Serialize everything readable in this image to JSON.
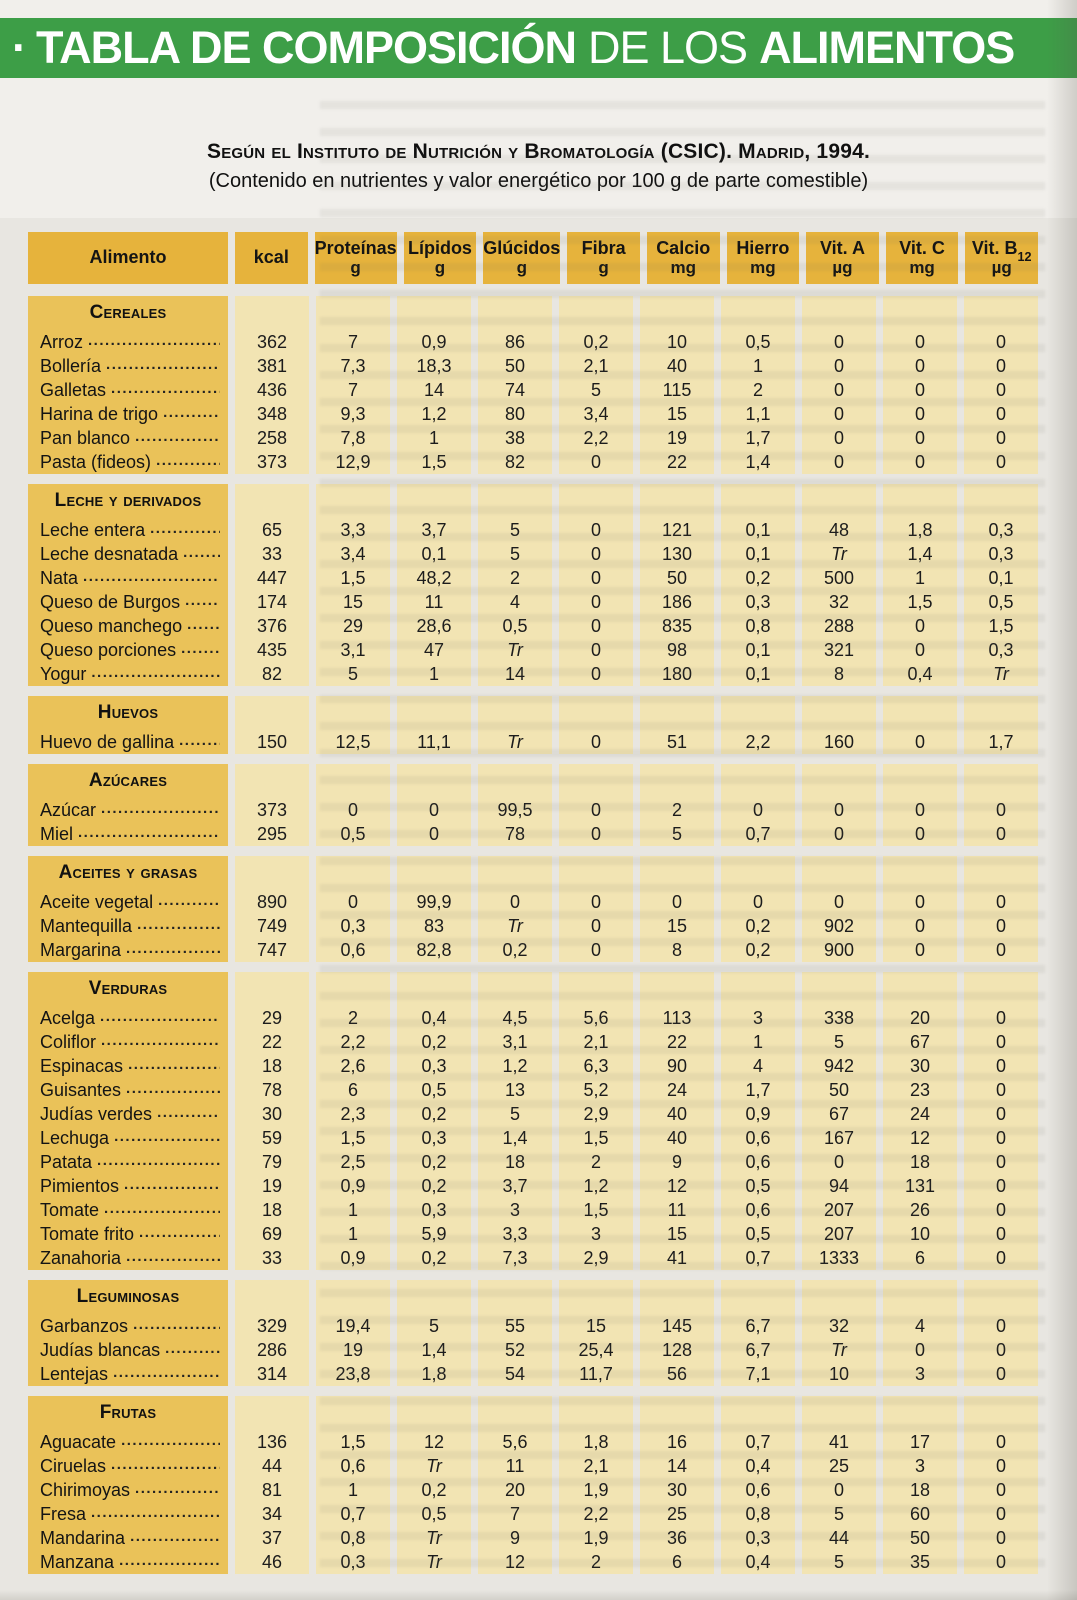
{
  "title": {
    "bullet": "·",
    "part1": "TABLA DE COMPOSICIÓN",
    "part2": "DE LOS",
    "part3": "ALIMENTOS"
  },
  "subtitle1": "Según el Instituto de Nutrición y Bromatología (CSIC). Madrid, 1994.",
  "subtitle2": "(Contenido en nutrientes y valor energético por 100 g de parte comestible)",
  "colors": {
    "header_green": "#3d9e47",
    "header_gold": "#e6b33c",
    "food_column_gold": "#eac259",
    "value_strip_cream": "#f2e4b3"
  },
  "columns": [
    {
      "label": "Alimento",
      "sub": "",
      "unit": ""
    },
    {
      "label": "kcal",
      "sub": "",
      "unit": ""
    },
    {
      "label": "Proteínas",
      "sub": "",
      "unit": "g"
    },
    {
      "label": "Lípidos",
      "sub": "",
      "unit": "g"
    },
    {
      "label": "Glúcidos",
      "sub": "",
      "unit": "g"
    },
    {
      "label": "Fibra",
      "sub": "",
      "unit": "g"
    },
    {
      "label": "Calcio",
      "sub": "",
      "unit": "mg"
    },
    {
      "label": "Hierro",
      "sub": "",
      "unit": "mg"
    },
    {
      "label": "Vit. A",
      "sub": "",
      "unit": "µg"
    },
    {
      "label": "Vit. C",
      "sub": "",
      "unit": "mg"
    },
    {
      "label": "Vit. B",
      "sub": "12",
      "unit": "µg"
    }
  ],
  "sections": [
    {
      "name": "Cereales",
      "rows": [
        {
          "food": "Arroz",
          "values": [
            "362",
            "7",
            "0,9",
            "86",
            "0,2",
            "10",
            "0,5",
            "0",
            "0",
            "0"
          ]
        },
        {
          "food": "Bollería",
          "values": [
            "381",
            "7,3",
            "18,3",
            "50",
            "2,1",
            "40",
            "1",
            "0",
            "0",
            "0"
          ]
        },
        {
          "food": "Galletas",
          "values": [
            "436",
            "7",
            "14",
            "74",
            "5",
            "115",
            "2",
            "0",
            "0",
            "0"
          ]
        },
        {
          "food": "Harina de trigo",
          "values": [
            "348",
            "9,3",
            "1,2",
            "80",
            "3,4",
            "15",
            "1,1",
            "0",
            "0",
            "0"
          ]
        },
        {
          "food": "Pan blanco",
          "values": [
            "258",
            "7,8",
            "1",
            "38",
            "2,2",
            "19",
            "1,7",
            "0",
            "0",
            "0"
          ]
        },
        {
          "food": "Pasta (fideos)",
          "values": [
            "373",
            "12,9",
            "1,5",
            "82",
            "0",
            "22",
            "1,4",
            "0",
            "0",
            "0"
          ]
        }
      ]
    },
    {
      "name": "Leche y derivados",
      "rows": [
        {
          "food": "Leche entera",
          "values": [
            "65",
            "3,3",
            "3,7",
            "5",
            "0",
            "121",
            "0,1",
            "48",
            "1,8",
            "0,3"
          ]
        },
        {
          "food": "Leche desnatada",
          "values": [
            "33",
            "3,4",
            "0,1",
            "5",
            "0",
            "130",
            "0,1",
            "Tr",
            "1,4",
            "0,3"
          ]
        },
        {
          "food": "Nata",
          "values": [
            "447",
            "1,5",
            "48,2",
            "2",
            "0",
            "50",
            "0,2",
            "500",
            "1",
            "0,1"
          ]
        },
        {
          "food": "Queso de Burgos",
          "values": [
            "174",
            "15",
            "11",
            "4",
            "0",
            "186",
            "0,3",
            "32",
            "1,5",
            "0,5"
          ]
        },
        {
          "food": "Queso manchego",
          "values": [
            "376",
            "29",
            "28,6",
            "0,5",
            "0",
            "835",
            "0,8",
            "288",
            "0",
            "1,5"
          ]
        },
        {
          "food": "Queso porciones",
          "values": [
            "435",
            "3,1",
            "47",
            "Tr",
            "0",
            "98",
            "0,1",
            "321",
            "0",
            "0,3"
          ]
        },
        {
          "food": "Yogur",
          "values": [
            "82",
            "5",
            "1",
            "14",
            "0",
            "180",
            "0,1",
            "8",
            "0,4",
            "Tr"
          ]
        }
      ]
    },
    {
      "name": "Huevos",
      "rows": [
        {
          "food": "Huevo de gallina",
          "values": [
            "150",
            "12,5",
            "11,1",
            "Tr",
            "0",
            "51",
            "2,2",
            "160",
            "0",
            "1,7"
          ]
        }
      ]
    },
    {
      "name": "Azúcares",
      "rows": [
        {
          "food": "Azúcar",
          "values": [
            "373",
            "0",
            "0",
            "99,5",
            "0",
            "2",
            "0",
            "0",
            "0",
            "0"
          ]
        },
        {
          "food": "Miel",
          "values": [
            "295",
            "0,5",
            "0",
            "78",
            "0",
            "5",
            "0,7",
            "0",
            "0",
            "0"
          ]
        }
      ]
    },
    {
      "name": "Aceites y grasas",
      "rows": [
        {
          "food": "Aceite vegetal",
          "values": [
            "890",
            "0",
            "99,9",
            "0",
            "0",
            "0",
            "0",
            "0",
            "0",
            "0"
          ]
        },
        {
          "food": "Mantequilla",
          "values": [
            "749",
            "0,3",
            "83",
            "Tr",
            "0",
            "15",
            "0,2",
            "902",
            "0",
            "0"
          ]
        },
        {
          "food": "Margarina",
          "values": [
            "747",
            "0,6",
            "82,8",
            "0,2",
            "0",
            "8",
            "0,2",
            "900",
            "0",
            "0"
          ]
        }
      ]
    },
    {
      "name": "Verduras",
      "rows": [
        {
          "food": "Acelga",
          "values": [
            "29",
            "2",
            "0,4",
            "4,5",
            "5,6",
            "113",
            "3",
            "338",
            "20",
            "0"
          ]
        },
        {
          "food": "Coliflor",
          "values": [
            "22",
            "2,2",
            "0,2",
            "3,1",
            "2,1",
            "22",
            "1",
            "5",
            "67",
            "0"
          ]
        },
        {
          "food": "Espinacas",
          "values": [
            "18",
            "2,6",
            "0,3",
            "1,2",
            "6,3",
            "90",
            "4",
            "942",
            "30",
            "0"
          ]
        },
        {
          "food": "Guisantes",
          "values": [
            "78",
            "6",
            "0,5",
            "13",
            "5,2",
            "24",
            "1,7",
            "50",
            "23",
            "0"
          ]
        },
        {
          "food": "Judías verdes",
          "values": [
            "30",
            "2,3",
            "0,2",
            "5",
            "2,9",
            "40",
            "0,9",
            "67",
            "24",
            "0"
          ]
        },
        {
          "food": "Lechuga",
          "values": [
            "59",
            "1,5",
            "0,3",
            "1,4",
            "1,5",
            "40",
            "0,6",
            "167",
            "12",
            "0"
          ]
        },
        {
          "food": "Patata",
          "values": [
            "79",
            "2,5",
            "0,2",
            "18",
            "2",
            "9",
            "0,6",
            "0",
            "18",
            "0"
          ]
        },
        {
          "food": "Pimientos",
          "values": [
            "19",
            "0,9",
            "0,2",
            "3,7",
            "1,2",
            "12",
            "0,5",
            "94",
            "131",
            "0"
          ]
        },
        {
          "food": "Tomate",
          "values": [
            "18",
            "1",
            "0,3",
            "3",
            "1,5",
            "11",
            "0,6",
            "207",
            "26",
            "0"
          ]
        },
        {
          "food": "Tomate frito",
          "values": [
            "69",
            "1",
            "5,9",
            "3,3",
            "3",
            "15",
            "0,5",
            "207",
            "10",
            "0"
          ]
        },
        {
          "food": "Zanahoria",
          "values": [
            "33",
            "0,9",
            "0,2",
            "7,3",
            "2,9",
            "41",
            "0,7",
            "1333",
            "6",
            "0"
          ]
        }
      ]
    },
    {
      "name": "Leguminosas",
      "rows": [
        {
          "food": "Garbanzos",
          "values": [
            "329",
            "19,4",
            "5",
            "55",
            "15",
            "145",
            "6,7",
            "32",
            "4",
            "0"
          ]
        },
        {
          "food": "Judías blancas",
          "values": [
            "286",
            "19",
            "1,4",
            "52",
            "25,4",
            "128",
            "6,7",
            "Tr",
            "0",
            "0"
          ]
        },
        {
          "food": "Lentejas",
          "values": [
            "314",
            "23,8",
            "1,8",
            "54",
            "11,7",
            "56",
            "7,1",
            "10",
            "3",
            "0"
          ]
        }
      ]
    },
    {
      "name": "Frutas",
      "rows": [
        {
          "food": "Aguacate",
          "values": [
            "136",
            "1,5",
            "12",
            "5,6",
            "1,8",
            "16",
            "0,7",
            "41",
            "17",
            "0"
          ]
        },
        {
          "food": "Ciruelas",
          "values": [
            "44",
            "0,6",
            "Tr",
            "11",
            "2,1",
            "14",
            "0,4",
            "25",
            "3",
            "0"
          ]
        },
        {
          "food": "Chirimoyas",
          "values": [
            "81",
            "1",
            "0,2",
            "20",
            "1,9",
            "30",
            "0,6",
            "0",
            "18",
            "0"
          ]
        },
        {
          "food": "Fresa",
          "values": [
            "34",
            "0,7",
            "0,5",
            "7",
            "2,2",
            "25",
            "0,8",
            "5",
            "60",
            "0"
          ]
        },
        {
          "food": "Mandarina",
          "values": [
            "37",
            "0,8",
            "Tr",
            "9",
            "1,9",
            "36",
            "0,3",
            "44",
            "50",
            "0"
          ]
        },
        {
          "food": "Manzana",
          "values": [
            "46",
            "0,3",
            "Tr",
            "12",
            "2",
            "6",
            "0,4",
            "5",
            "35",
            "0"
          ]
        }
      ]
    }
  ]
}
